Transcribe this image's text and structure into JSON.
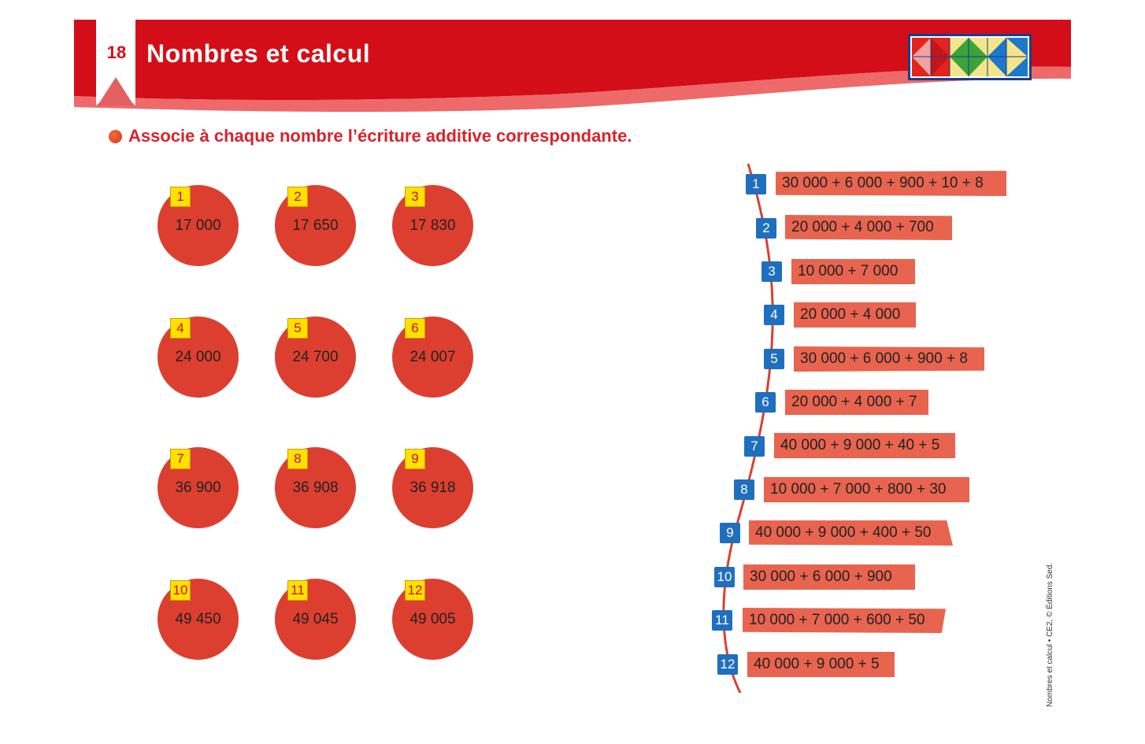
{
  "header": {
    "page_number": "18",
    "title": "Nombres et calcul"
  },
  "instruction": "Associe à chaque nombre l’écriture additive correspondante.",
  "numbers": [
    {
      "tag": "1",
      "value": "17 000"
    },
    {
      "tag": "2",
      "value": "17 650"
    },
    {
      "tag": "3",
      "value": "17 830"
    },
    {
      "tag": "4",
      "value": "24 000"
    },
    {
      "tag": "5",
      "value": "24 700"
    },
    {
      "tag": "6",
      "value": "24 007"
    },
    {
      "tag": "7",
      "value": "36 900"
    },
    {
      "tag": "8",
      "value": "36 908"
    },
    {
      "tag": "9",
      "value": "36 918"
    },
    {
      "tag": "10",
      "value": "49 450"
    },
    {
      "tag": "11",
      "value": "49 045"
    },
    {
      "tag": "12",
      "value": "49 005"
    }
  ],
  "expressions": [
    {
      "tag": "1",
      "text": "30 000 + 6 000 + 900 + 10 + 8"
    },
    {
      "tag": "2",
      "text": "20 000 + 4 000 + 700"
    },
    {
      "tag": "3",
      "text": "10 000 + 7 000"
    },
    {
      "tag": "4",
      "text": "20 000 + 4 000"
    },
    {
      "tag": "5",
      "text": "30 000 + 6 000 + 900 + 8"
    },
    {
      "tag": "6",
      "text": "20 000 + 4 000 + 7"
    },
    {
      "tag": "7",
      "text": "40 000 + 9 000 + 40 + 5"
    },
    {
      "tag": "8",
      "text": "10 000 + 7 000 + 800 + 30"
    },
    {
      "tag": "9",
      "text": "40 000 + 9 000 + 400 + 50"
    },
    {
      "tag": "10",
      "text": "30 000 + 6 000 + 900"
    },
    {
      "tag": "11",
      "text": "10 000 + 7 000 + 600 + 50"
    },
    {
      "tag": "12",
      "text": "40 000 + 9 000 + 5"
    }
  ],
  "footer": {
    "copyright": "Nombres et calcul • CE2, © Éditions Sed."
  },
  "colors": {
    "header_red": "#d30e18",
    "circle_red": "#dc3f2f",
    "strip_salmon": "#e8644f",
    "tag_yellow": "#ffe100",
    "square_blue": "#1f6fbf"
  }
}
